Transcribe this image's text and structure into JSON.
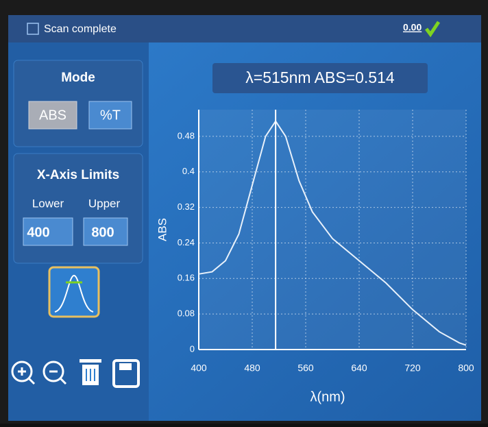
{
  "header": {
    "status": "Scan complete",
    "reading": "0.00"
  },
  "mode_panel": {
    "title": "Mode",
    "buttons": [
      "ABS",
      "%T"
    ]
  },
  "x_axis_limits_panel": {
    "title": "X-Axis Limits",
    "lower_label": "Lower",
    "upper_label": "Upper",
    "lower": "400",
    "upper": "800"
  },
  "chart_data": {
    "type": "line",
    "annotation": "λ=515nm ABS=0.514",
    "x_label": "λ(nm)",
    "y_label": "ABS",
    "x": [
      400,
      420,
      440,
      460,
      480,
      500,
      515,
      530,
      550,
      570,
      600,
      640,
      680,
      720,
      760,
      790,
      800
    ],
    "series": [
      {
        "name": "ABS",
        "color": "#e8f1fb",
        "values": [
          0.17,
          0.175,
          0.2,
          0.26,
          0.37,
          0.48,
          0.514,
          0.48,
          0.38,
          0.31,
          0.25,
          0.2,
          0.15,
          0.09,
          0.04,
          0.015,
          0.01
        ]
      }
    ],
    "cursor_x": 515,
    "xlim": [
      400,
      800
    ],
    "xticks": [
      400,
      480,
      560,
      640,
      720,
      800
    ],
    "ylim": [
      0,
      0.54
    ],
    "yticks": [
      0,
      0.08,
      0.16,
      0.24,
      0.32,
      0.4,
      0.48
    ],
    "grid": true
  }
}
